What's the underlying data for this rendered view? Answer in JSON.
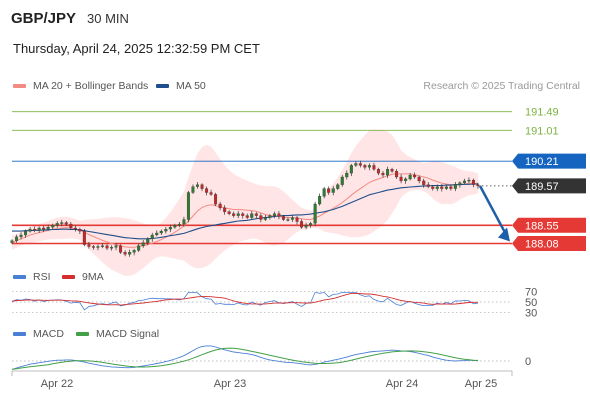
{
  "header": {
    "symbol": "GBP/JPY",
    "timeframe": "30 MIN",
    "datetime": "Thursday, April 24, 2025 12:32:59 PM CET"
  },
  "legend": {
    "ma20": "MA 20 + Bollinger Bands",
    "ma50": "MA 50",
    "copyright": "Research © 2025 Trading Central",
    "rsi": "RSI",
    "rsi_ma": "9MA",
    "macd": "MACD",
    "macd_signal": "MACD Signal"
  },
  "colors": {
    "ma20": "#f28b82",
    "ma50": "#1f4e8c",
    "bollinger_fill": "#ffe0e0",
    "bull_candle": "#2e7d32",
    "bear_candle": "#c62828",
    "resistance": "#7cb342",
    "pivot": "#1565c0",
    "support": "#e53935",
    "price": "#333333",
    "arrow": "#1f5fa8",
    "rsi": "#4a7fd6",
    "rsi_ma": "#d32f2f",
    "macd": "#4a7fd6",
    "macd_signal": "#43a047"
  },
  "chart_data": {
    "type": "candlestick",
    "x_labels": [
      "Apr 22",
      "Apr 23",
      "Apr 24",
      "Apr 25"
    ],
    "y_range": [
      187.6,
      192.0
    ],
    "levels": [
      {
        "name": "resistance-2",
        "value": 191.49,
        "label": "191.49",
        "kind": "resistance"
      },
      {
        "name": "resistance-1",
        "value": 191.01,
        "label": "191.01",
        "kind": "resistance"
      },
      {
        "name": "pivot",
        "value": 190.21,
        "label": "190.21",
        "kind": "pivot"
      },
      {
        "name": "current-price",
        "value": 189.57,
        "label": "189.57",
        "kind": "price"
      },
      {
        "name": "support-1",
        "value": 188.55,
        "label": "188.55",
        "kind": "support"
      },
      {
        "name": "support-2",
        "value": 188.08,
        "label": "188.08",
        "kind": "support"
      }
    ],
    "close": [
      188.15,
      188.25,
      188.3,
      188.4,
      188.45,
      188.42,
      188.48,
      188.45,
      188.5,
      188.55,
      188.6,
      188.62,
      188.58,
      188.48,
      188.45,
      188.4,
      188.05,
      188.0,
      187.98,
      188.0,
      188.02,
      187.96,
      187.98,
      188.02,
      187.85,
      187.8,
      187.85,
      187.9,
      188.02,
      188.1,
      188.2,
      188.3,
      188.35,
      188.4,
      188.45,
      188.5,
      188.55,
      188.58,
      188.7,
      189.4,
      189.55,
      189.6,
      189.5,
      189.4,
      189.35,
      189.1,
      189.0,
      188.9,
      188.85,
      188.8,
      188.85,
      188.8,
      188.75,
      188.85,
      188.8,
      188.7,
      188.75,
      188.8,
      188.85,
      188.78,
      188.7,
      188.7,
      188.75,
      188.65,
      188.5,
      188.55,
      188.6,
      189.1,
      189.3,
      189.5,
      189.4,
      189.5,
      189.6,
      189.8,
      189.9,
      190.1,
      190.15,
      190.1,
      190.05,
      190.1,
      190.0,
      189.9,
      189.85,
      190.0,
      189.95,
      189.8,
      189.7,
      189.75,
      189.85,
      189.8,
      189.7,
      189.6,
      189.55,
      189.5,
      189.55,
      189.5,
      189.55,
      189.5,
      189.6,
      189.65,
      189.7,
      189.72,
      189.6,
      189.57
    ],
    "ma20": [
      188.1,
      188.15,
      188.2,
      188.25,
      188.3,
      188.33,
      188.36,
      188.39,
      188.42,
      188.45,
      188.47,
      188.48,
      188.49,
      188.48,
      188.46,
      188.42,
      188.37,
      188.31,
      188.26,
      188.21,
      188.16,
      188.12,
      188.08,
      188.05,
      188.02,
      187.99,
      187.98,
      187.98,
      188.0,
      188.02,
      188.05,
      188.09,
      188.13,
      188.18,
      188.24,
      188.3,
      188.37,
      188.45,
      188.53,
      188.66,
      188.79,
      188.92,
      189.01,
      189.06,
      189.08,
      189.06,
      189.03,
      189.0,
      188.98,
      188.96,
      188.96,
      188.95,
      188.94,
      188.93,
      188.91,
      188.87,
      188.83,
      188.8,
      188.79,
      188.78,
      188.76,
      188.75,
      188.75,
      188.74,
      188.72,
      188.7,
      188.7,
      188.74,
      188.79,
      188.86,
      188.92,
      188.99,
      189.06,
      189.14,
      189.23,
      189.33,
      189.42,
      189.5,
      189.58,
      189.66,
      189.71,
      189.75,
      189.79,
      189.83,
      189.87,
      189.88,
      189.88,
      189.88,
      189.88,
      189.86,
      189.83,
      189.8,
      189.77,
      189.72,
      189.68,
      189.64,
      189.62,
      189.6,
      189.6,
      189.61,
      189.62,
      189.64,
      189.64,
      189.63
    ],
    "ma50": [
      188.4,
      188.4,
      188.4,
      188.41,
      188.41,
      188.42,
      188.42,
      188.43,
      188.43,
      188.44,
      188.44,
      188.45,
      188.45,
      188.44,
      188.44,
      188.43,
      188.41,
      188.39,
      188.37,
      188.35,
      188.33,
      188.31,
      188.29,
      188.27,
      188.25,
      188.23,
      188.22,
      188.21,
      188.2,
      188.2,
      188.2,
      188.21,
      188.22,
      188.24,
      188.26,
      188.28,
      188.3,
      188.32,
      188.34,
      188.38,
      188.42,
      188.46,
      188.49,
      188.52,
      188.54,
      188.56,
      188.58,
      188.6,
      188.62,
      188.64,
      188.66,
      188.67,
      188.68,
      188.7,
      188.72,
      188.74,
      188.75,
      188.76,
      188.78,
      188.79,
      188.8,
      188.8,
      188.81,
      188.82,
      188.82,
      188.83,
      188.84,
      188.86,
      188.88,
      188.9,
      188.93,
      188.96,
      189.0,
      189.04,
      189.09,
      189.14,
      189.19,
      189.24,
      189.29,
      189.34,
      189.37,
      189.4,
      189.43,
      189.46,
      189.48,
      189.5,
      189.52,
      189.53,
      189.54,
      189.55,
      189.56,
      189.57,
      189.57,
      189.58,
      189.58,
      189.58,
      189.59,
      189.59,
      189.6,
      189.6,
      189.61,
      189.61,
      189.62,
      189.62
    ],
    "rsi_range": [
      20,
      80
    ],
    "rsi_levels": [
      70,
      50,
      30
    ],
    "macd_levels": [
      0
    ]
  }
}
